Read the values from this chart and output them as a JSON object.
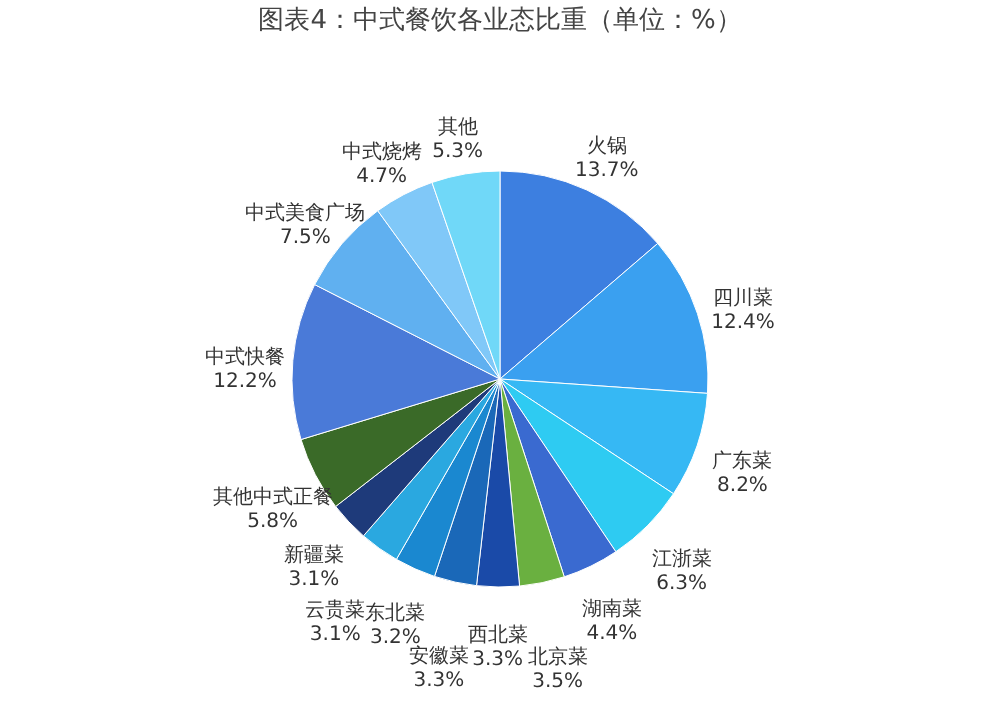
{
  "chart_data": {
    "type": "pie",
    "title": "图表4：中式餐饮各业态比重（单位：%）",
    "categories": [
      "火锅",
      "四川菜",
      "广东菜",
      "江浙菜",
      "湖南菜",
      "北京菜",
      "西北菜",
      "安徽菜",
      "东北菜",
      "云贵菜",
      "新疆菜",
      "其他中式正餐",
      "中式快餐",
      "中式美食广场",
      "中式烧烤",
      "其他"
    ],
    "values": [
      13.7,
      12.4,
      8.2,
      6.3,
      4.4,
      3.5,
      3.3,
      3.3,
      3.2,
      3.1,
      3.1,
      5.8,
      12.2,
      7.5,
      4.7,
      5.3
    ],
    "value_labels": [
      "13.7%",
      "12.4%",
      "8.2%",
      "6.3%",
      "4.4%",
      "3.5%",
      "3.3%",
      "3.3%",
      "3.2%",
      "3.1%",
      "3.1%",
      "5.8%",
      "12.2%",
      "7.5%",
      "4.7%",
      "5.3%"
    ],
    "colors": [
      "#3d7fe0",
      "#3aa0f0",
      "#36b8f4",
      "#2ecbf2",
      "#3a6ad0",
      "#6ab040",
      "#1a4aa8",
      "#1a68b8",
      "#1a88d0",
      "#2aa8e0",
      "#1e3a7a",
      "#3a6a28",
      "#4a7ad8",
      "#60b0f0",
      "#80c8f8",
      "#70d8f8"
    ],
    "legend": false
  }
}
